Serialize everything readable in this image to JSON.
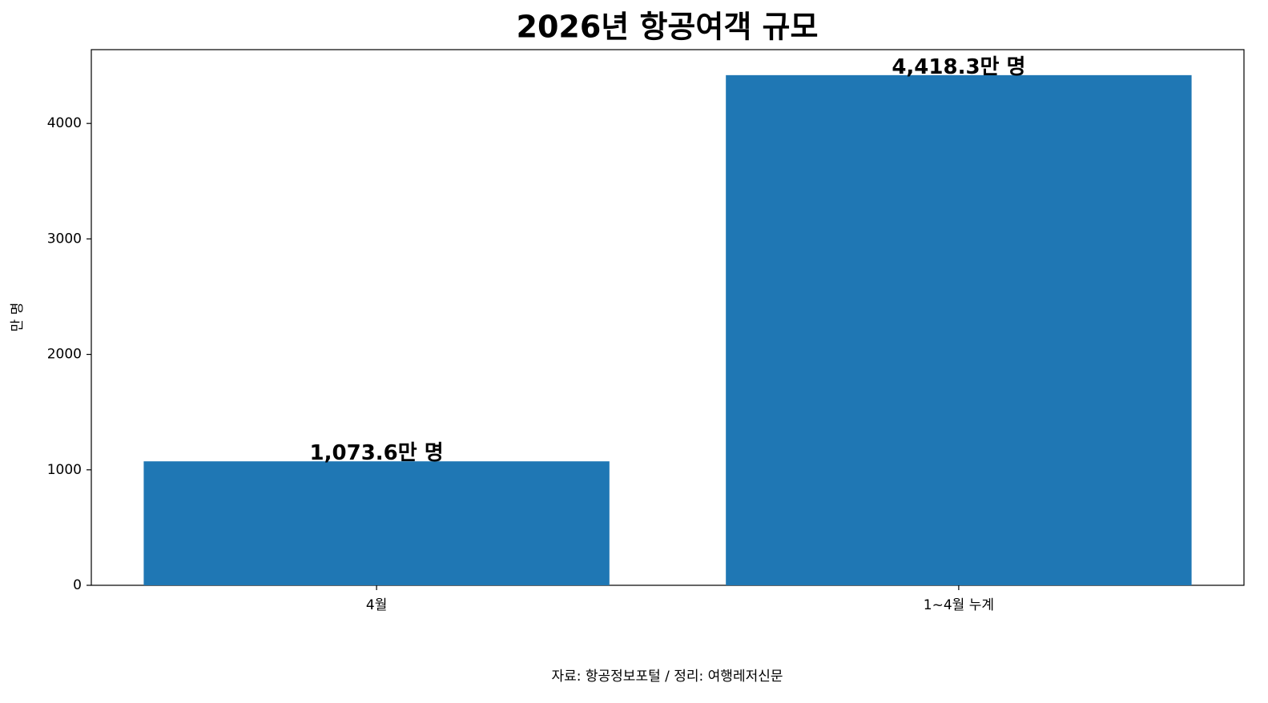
{
  "chart_data": {
    "type": "bar",
    "title": "2026년 항공여객 규모",
    "categories": [
      "4월",
      "1~4월 누계"
    ],
    "values": [
      1073.6,
      4418.3
    ],
    "value_labels": [
      "1,073.6만 명",
      "4,418.3만 명"
    ],
    "color": "#1f77b4",
    "ylabel": "만 명",
    "ylim": [
      0,
      4639.2
    ],
    "yticks": [
      0,
      1000,
      2000,
      3000,
      4000
    ],
    "grid": false,
    "source": "자료: 항공정보포털 / 정리: 여행레저신문"
  }
}
